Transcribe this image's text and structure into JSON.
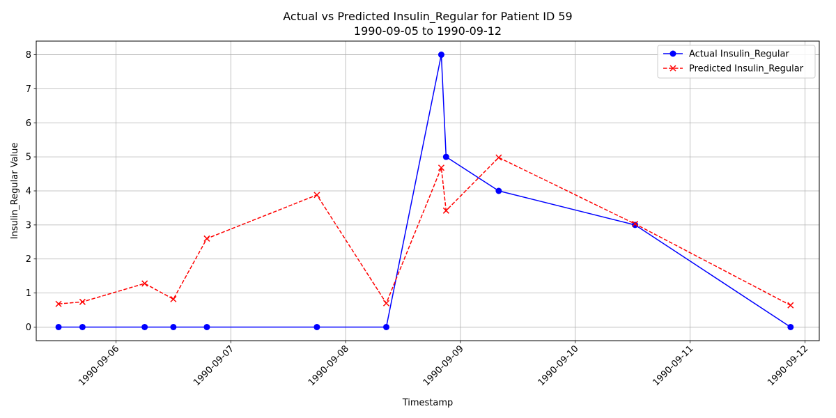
{
  "chart_data": {
    "type": "line",
    "title_line1": "Actual vs Predicted Insulin_Regular for Patient ID 59",
    "title_line2": "1990-09-05 to 1990-09-12",
    "xlabel": "Timestamp",
    "ylabel": "Insulin_Regular Value",
    "xlim": [
      "1990-09-05 07:20",
      "1990-09-12 03:00"
    ],
    "ylim": [
      -0.4,
      8.4
    ],
    "yticks": [
      0,
      1,
      2,
      3,
      4,
      5,
      6,
      7,
      8
    ],
    "xticks": [
      "1990-09-06",
      "1990-09-07",
      "1990-09-08",
      "1990-09-09",
      "1990-09-10",
      "1990-09-11",
      "1990-09-12"
    ],
    "grid": true,
    "legend": "top-right",
    "series": [
      {
        "name": "Actual Insulin_Regular",
        "color": "#0000ff",
        "style": "solid",
        "marker": "circle",
        "x": [
          "1990-09-05 12:00",
          "1990-09-05 17:00",
          "1990-09-06 06:00",
          "1990-09-06 12:00",
          "1990-09-06 19:00",
          "1990-09-07 18:00",
          "1990-09-08 08:30",
          "1990-09-08 20:00",
          "1990-09-08 21:00",
          "1990-09-09 08:00",
          "1990-09-10 12:30",
          "1990-09-11 21:00"
        ],
        "y": [
          0,
          0,
          0,
          0,
          0,
          0,
          0,
          8,
          5,
          4,
          3,
          0
        ]
      },
      {
        "name": "Predicted Insulin_Regular",
        "color": "#ff0000",
        "style": "dashed",
        "marker": "x",
        "x": [
          "1990-09-05 12:00",
          "1990-09-05 17:00",
          "1990-09-06 06:00",
          "1990-09-06 12:00",
          "1990-09-06 19:00",
          "1990-09-07 18:00",
          "1990-09-08 08:30",
          "1990-09-08 20:00",
          "1990-09-08 21:00",
          "1990-09-09 08:00",
          "1990-09-10 12:30",
          "1990-09-11 21:00"
        ],
        "y": [
          0.68,
          0.74,
          1.28,
          0.82,
          2.6,
          3.88,
          0.7,
          4.68,
          3.42,
          4.98,
          3.03,
          0.64
        ]
      }
    ]
  }
}
